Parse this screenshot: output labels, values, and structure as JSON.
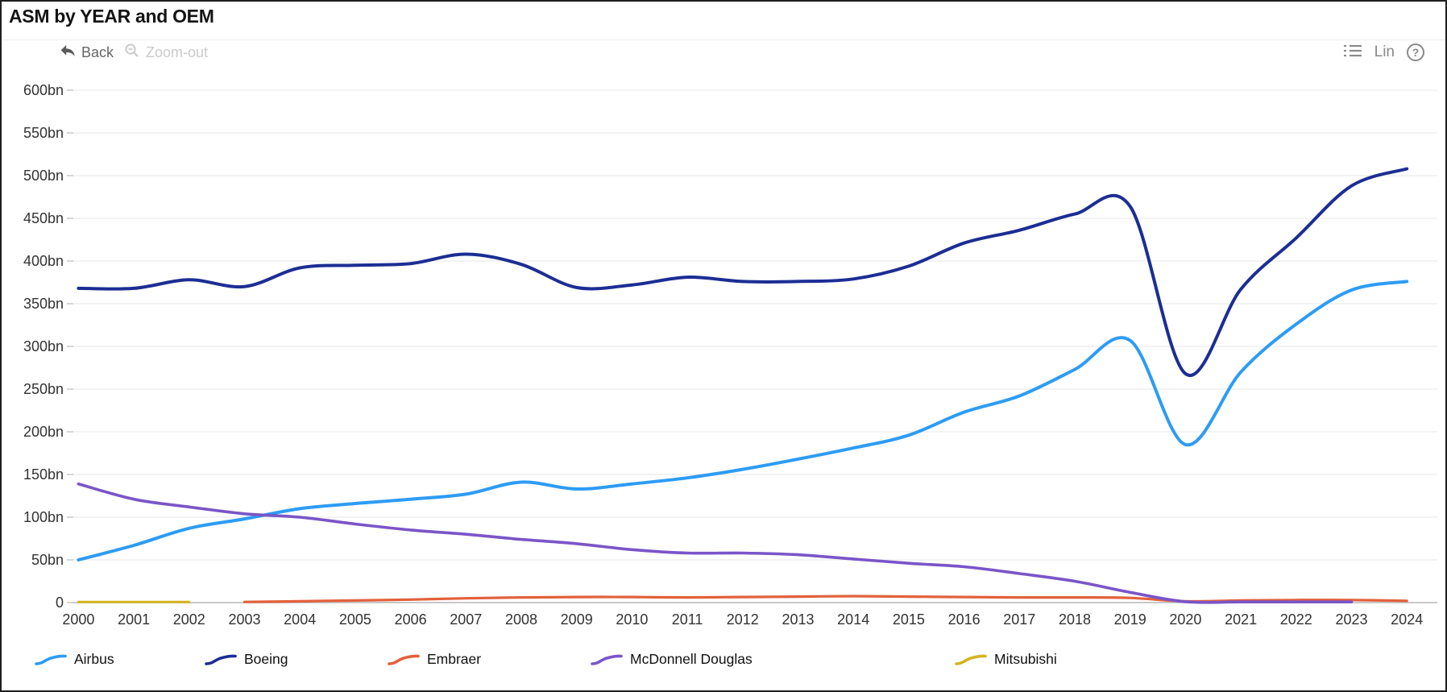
{
  "header": {
    "title": "ASM by YEAR and OEM"
  },
  "toolbar": {
    "back_label": "Back",
    "zoom_out_label": "Zoom-out",
    "scale_mode_label": "Lin",
    "help_label": "?",
    "icons": {
      "back": "reply-arrow-icon",
      "zoom_out": "magnifier-minus-icon",
      "series_list": "list-icon",
      "help": "help-circle-icon"
    }
  },
  "colors": {
    "grid": "#efefef",
    "axis": "#c8c8c8",
    "tick_text": "#333333",
    "title_text": "#141414",
    "back_enabled": "#666666",
    "zoom_out_disabled": "#cbcbcb",
    "right_tools": "#8a8a8a"
  },
  "chart_data": {
    "type": "line",
    "title": "ASM by YEAR and OEM",
    "xlabel": "",
    "ylabel": "",
    "unit": "bn",
    "grid": true,
    "line_style": "smooth",
    "legend_position": "bottom",
    "ylim": [
      0,
      600
    ],
    "yticks": [
      {
        "label": "600bn",
        "value": 600
      },
      {
        "label": "550bn",
        "value": 550
      },
      {
        "label": "500bn",
        "value": 500
      },
      {
        "label": "450bn",
        "value": 450
      },
      {
        "label": "400bn",
        "value": 400
      },
      {
        "label": "350bn",
        "value": 350
      },
      {
        "label": "300bn",
        "value": 300
      },
      {
        "label": "250bn",
        "value": 250
      },
      {
        "label": "200bn",
        "value": 200
      },
      {
        "label": "150bn",
        "value": 150
      },
      {
        "label": "100bn",
        "value": 100
      },
      {
        "label": "50bn",
        "value": 50
      },
      {
        "label": "0",
        "value": 0
      }
    ],
    "x": [
      2000,
      2001,
      2002,
      2003,
      2004,
      2005,
      2006,
      2007,
      2008,
      2009,
      2010,
      2011,
      2012,
      2013,
      2014,
      2015,
      2016,
      2017,
      2018,
      2019,
      2020,
      2021,
      2022,
      2023,
      2024
    ],
    "series": [
      {
        "name": "Airbus",
        "color": "#2D9CF4",
        "values": [
          50,
          67,
          87,
          98,
          110,
          116,
          121,
          127,
          141,
          133,
          139,
          146,
          156,
          168,
          181,
          196,
          223,
          242,
          273,
          307,
          185,
          270,
          326,
          366,
          376
        ]
      },
      {
        "name": "Boeing",
        "color": "#1C2D94",
        "values": [
          368,
          368,
          378,
          370,
          392,
          395,
          397,
          408,
          396,
          369,
          372,
          381,
          376,
          376,
          379,
          394,
          421,
          436,
          455,
          464,
          268,
          367,
          427,
          488,
          508
        ]
      },
      {
        "name": "Embraer",
        "color": "#E2613B",
        "values": [
          null,
          null,
          null,
          0.3,
          1.5,
          2.5,
          3.5,
          5,
          6,
          6.5,
          6.5,
          6,
          6.5,
          7,
          7.5,
          7,
          6.5,
          6,
          6,
          5.5,
          1.5,
          2.5,
          3,
          3,
          2
        ]
      },
      {
        "name": "McDonnell Douglas",
        "color": "#7A55C8",
        "values": [
          139,
          121,
          112,
          104,
          100,
          92,
          85,
          80,
          74,
          69,
          62,
          58,
          58,
          56,
          51,
          46,
          42,
          34,
          25,
          12,
          1,
          0.8,
          0.6,
          0.4,
          null
        ]
      },
      {
        "name": "Mitsubishi",
        "color": "#D5B41F",
        "values": [
          0.4,
          0.6,
          0.4,
          null,
          null,
          null,
          null,
          null,
          null,
          null,
          null,
          null,
          null,
          null,
          null,
          null,
          null,
          null,
          null,
          null,
          null,
          null,
          null,
          null,
          null
        ]
      }
    ]
  }
}
